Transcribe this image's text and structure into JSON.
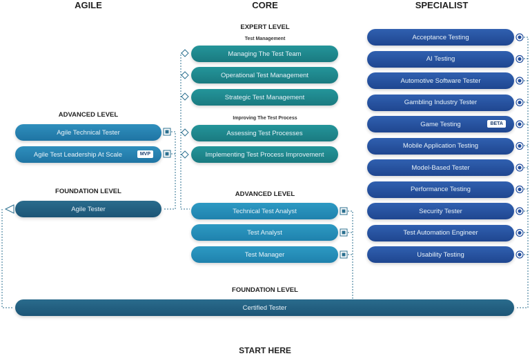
{
  "columns": {
    "agile": "AGILE",
    "core": "CORE",
    "specialist": "SPECIALIST"
  },
  "agile": {
    "advanced_title": "ADVANCED LEVEL",
    "advanced": [
      "Agile Technical Tester",
      "Agile Test Leadership At Scale"
    ],
    "mvp_badge": "MVP",
    "foundation_title": "FOUNDATION LEVEL",
    "foundation": "Agile Tester"
  },
  "core": {
    "expert_title": "EXPERT LEVEL",
    "test_management_title": "Test Management",
    "test_management": [
      "Managing The Test Team",
      "Operational Test Management",
      "Strategic Test Management"
    ],
    "improving_title": "Improving The Test Process",
    "improving": [
      "Assessing Test Processes",
      "Implementing Test Process Improvement"
    ],
    "advanced_title": "ADVANCED LEVEL",
    "advanced": [
      "Technical Test Analyst",
      "Test Analyst",
      "Test Manager"
    ],
    "foundation_title": "FOUNDATION LEVEL",
    "foundation": "Certified Tester"
  },
  "specialist": {
    "items": [
      "Acceptance Testing",
      "AI Testing",
      "Automotive Software Tester",
      "Gambling Industry Tester",
      "Game Testing",
      "Mobile Application Testing",
      "Model-Based Tester",
      "Performance Testing",
      "Security Tester",
      "Test Automation Engineer",
      "Usability Testing"
    ],
    "beta_badge": "BETA"
  },
  "start": "START HERE",
  "colors": {
    "agile": "#2a86b5",
    "agile_foundation": "#1f5f80",
    "expert": "#1f8a8f",
    "core_advanced": "#2a8fb8",
    "specialist": "#244f9e"
  }
}
